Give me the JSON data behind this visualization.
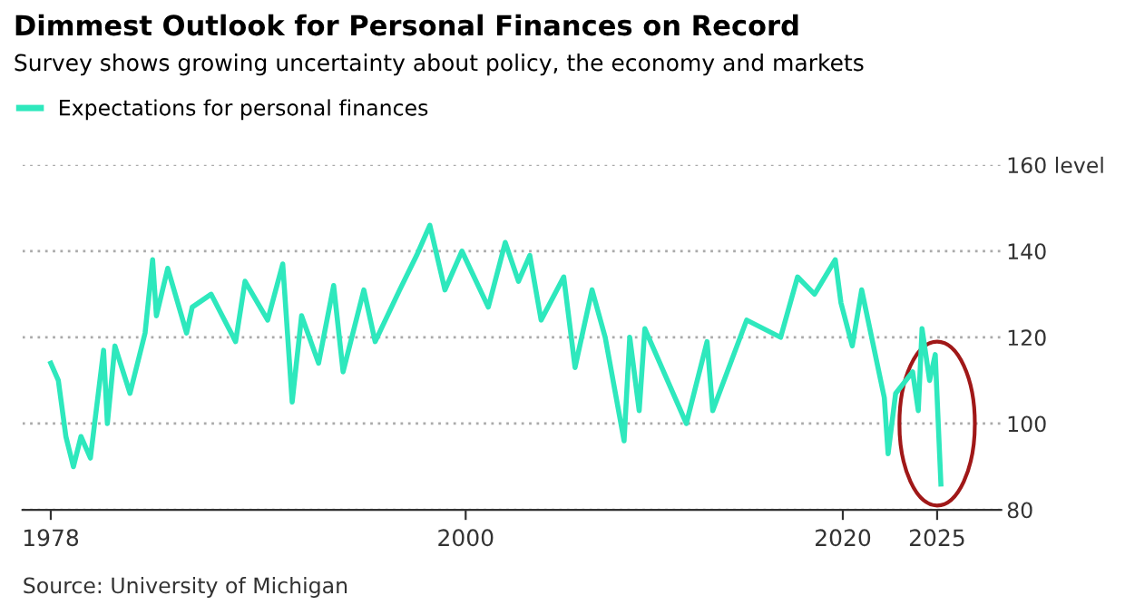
{
  "chart_data": {
    "type": "line",
    "title": "Dimmest Outlook for Personal Finances on Record",
    "subtitle": "Survey shows growing uncertainty about policy, the economy and markets",
    "annotations": [
      "Source: University of Michigan"
    ],
    "series": [
      {
        "name": "Expectations for personal finances",
        "color": "#2ee8bd",
        "x": [
          1978.0,
          1978.4,
          1978.8,
          1979.2,
          1979.6,
          1980.1,
          1980.8,
          1981.0,
          1981.4,
          1982.2,
          1983.0,
          1983.4,
          1983.6,
          1984.2,
          1985.2,
          1985.5,
          1986.5,
          1987.8,
          1988.3,
          1989.5,
          1990.3,
          1990.8,
          1991.3,
          1992.2,
          1993.0,
          1993.5,
          1994.6,
          1995.2,
          1996.5,
          1997.4,
          1998.1,
          1998.9,
          1999.8,
          2001.2,
          2002.1,
          2002.8,
          2003.4,
          2004.0,
          2005.2,
          2005.8,
          2006.7,
          2007.4,
          2008.4,
          2008.7,
          2009.2,
          2009.5,
          2010.7,
          2011.7,
          2012.8,
          2013.1,
          2014.3,
          2014.9,
          2016.7,
          2017.6,
          2018.5,
          2019.6,
          2019.9,
          2020.5,
          2021.0,
          2022.2,
          2022.4,
          2022.8,
          2023.7,
          2024.0,
          2024.2,
          2024.6,
          2024.9,
          2025.2
        ],
        "values": [
          114,
          110,
          97,
          90,
          97,
          92,
          117,
          100,
          118,
          107,
          121,
          138,
          125,
          136,
          121,
          127,
          130,
          119,
          133,
          124,
          137,
          105,
          125,
          114,
          132,
          112,
          131,
          119,
          131,
          139,
          146,
          131,
          140,
          127,
          142,
          133,
          139,
          124,
          134,
          113,
          131,
          120,
          96,
          120,
          103,
          122,
          110,
          100,
          119,
          103,
          117,
          124,
          120,
          134,
          130,
          138,
          128,
          118,
          131,
          106,
          93,
          107,
          112,
          103,
          122,
          110,
          116,
          86
        ]
      }
    ],
    "xlim": [
      1976.5,
      2028.4
    ],
    "ylim": [
      80,
      160
    ],
    "xticks": [
      1978,
      2000,
      2020,
      2025
    ],
    "yticks": [
      80,
      100,
      120,
      140,
      {
        "value": 160,
        "label": "160 level"
      }
    ],
    "grid": "y",
    "legend": "top left",
    "line_style": "solid",
    "marker": "none"
  }
}
